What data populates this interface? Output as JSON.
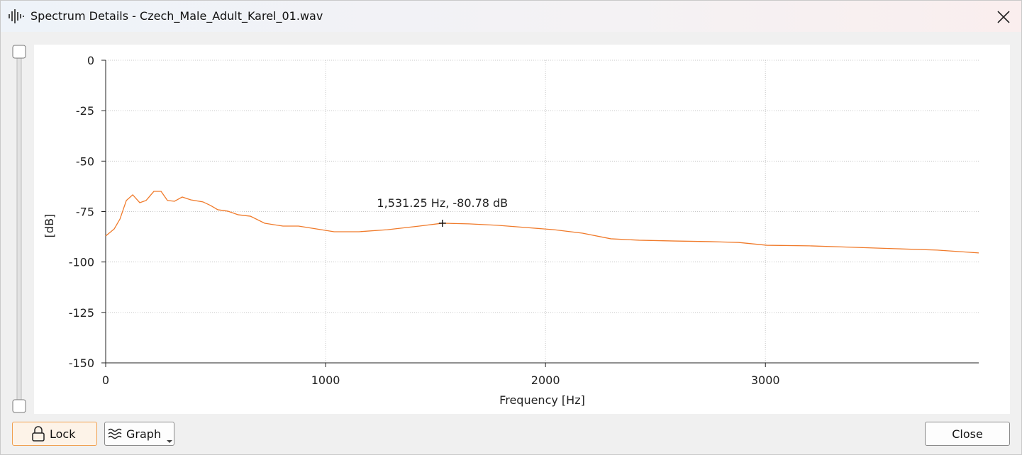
{
  "window": {
    "title": "Spectrum Details - Czech_Male_Adult_Karel_01.wav"
  },
  "buttons": {
    "lock": "Lock",
    "graph": "Graph",
    "close": "Close"
  },
  "chart_data": {
    "type": "line",
    "x_label": "Frequency [Hz]",
    "y_label": "[dB]",
    "x": [
      0,
      39,
      65,
      94,
      123,
      155,
      184,
      219,
      252,
      281,
      313,
      348,
      387,
      442,
      477,
      510,
      555,
      603,
      658,
      723,
      806,
      877,
      958,
      1039,
      1152,
      1281,
      1426,
      1531.25,
      1652,
      1781,
      1910,
      2039,
      2168,
      2297,
      2426,
      2587,
      2748,
      2877,
      3006,
      3200,
      3394,
      3587,
      3781,
      3970
    ],
    "values": [
      -87.1,
      -83.6,
      -78.7,
      -69.5,
      -66.7,
      -70.6,
      -69.5,
      -65,
      -65,
      -69.5,
      -69.9,
      -67.8,
      -69.2,
      -70.2,
      -72,
      -74.1,
      -74.8,
      -76.6,
      -77.3,
      -80.8,
      -82.2,
      -82.2,
      -83.6,
      -85,
      -85,
      -84,
      -82.2,
      -80.78,
      -81.1,
      -81.8,
      -82.9,
      -84,
      -85.7,
      -88.5,
      -89.2,
      -89.6,
      -89.9,
      -90.3,
      -91.7,
      -92,
      -92.7,
      -93.4,
      -94.1,
      -95.5
    ],
    "color": "#f07a2a",
    "xlim": [
      0,
      3970
    ],
    "ylim": [
      -150,
      0
    ],
    "xticks": [
      0,
      1000,
      2000,
      3000
    ],
    "yticks": [
      0,
      -25,
      -50,
      -75,
      -100,
      -125,
      -150
    ],
    "grid": true,
    "annotation": {
      "x": 1531.25,
      "y": -80.78,
      "label": "1,531.25 Hz, -80.78 dB"
    }
  }
}
